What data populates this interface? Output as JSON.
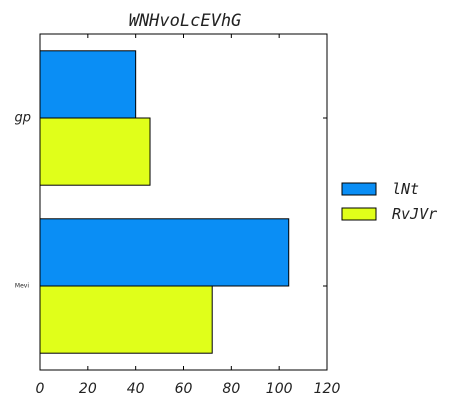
{
  "chart_data": {
    "type": "bar",
    "orientation": "horizontal",
    "title": "WNHvoLcEVhG",
    "xlabel": "",
    "ylabel": "",
    "categories": [
      "gp",
      "Mevi"
    ],
    "series": [
      {
        "name": "lNt",
        "color": "#0a8ef5",
        "values": [
          40,
          104
        ]
      },
      {
        "name": "RvJVr",
        "color": "#e0ff1a",
        "values": [
          46,
          72
        ]
      }
    ],
    "xlim": [
      0,
      120
    ],
    "xticks": [
      0,
      20,
      40,
      60,
      80,
      100,
      120
    ],
    "grid": false,
    "legend": "right"
  }
}
